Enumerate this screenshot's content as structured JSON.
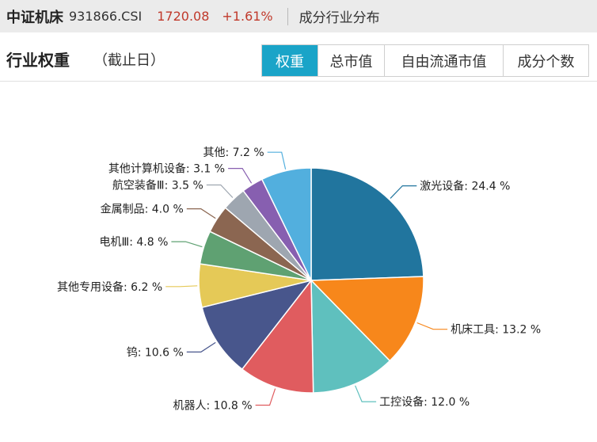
{
  "header": {
    "index_name": "中证机床",
    "index_code": "931866.CSI",
    "price": "1720.08",
    "change": "+1.61%",
    "section_link": "成分行业分布",
    "up_color": "#c0392b"
  },
  "panel": {
    "title": "行业权重",
    "subtitle": "（截止日）",
    "accent_color": "#1aa4c8",
    "tabs": [
      {
        "label": "权重",
        "active": true
      },
      {
        "label": "总市值",
        "active": false
      },
      {
        "label": "自由流通市值",
        "active": false
      },
      {
        "label": "成分个数",
        "active": false
      }
    ]
  },
  "chart_data": {
    "type": "pie",
    "unit": "%",
    "slices": [
      {
        "label": "激光设备",
        "value": 24.4,
        "display": "24.4 %",
        "color": "#21759e"
      },
      {
        "label": "机床工具",
        "value": 13.2,
        "display": "13.2 %",
        "color": "#f7871b"
      },
      {
        "label": "工控设备",
        "value": 12.0,
        "display": "12.0 %",
        "color": "#5fc0be"
      },
      {
        "label": "机器人",
        "value": 10.8,
        "display": "10.8 %",
        "color": "#e05c5f"
      },
      {
        "label": "钨",
        "value": 10.6,
        "display": "10.6 %",
        "color": "#48568c"
      },
      {
        "label": "其他专用设备",
        "value": 6.2,
        "display": "6.2 %",
        "color": "#e5c957"
      },
      {
        "label": "电机Ⅲ",
        "value": 4.8,
        "display": "4.8 %",
        "color": "#5fa172"
      },
      {
        "label": "金属制品",
        "value": 4.0,
        "display": "4.0 %",
        "color": "#8b6651"
      },
      {
        "label": "航空装备Ⅲ",
        "value": 3.5,
        "display": "3.5 %",
        "color": "#9ea6b0"
      },
      {
        "label": "其他计算机设备",
        "value": 3.1,
        "display": "3.1 %",
        "color": "#875fb0"
      },
      {
        "label": "其他",
        "value": 7.2,
        "display": "7.2 %",
        "color": "#52afde"
      }
    ]
  }
}
